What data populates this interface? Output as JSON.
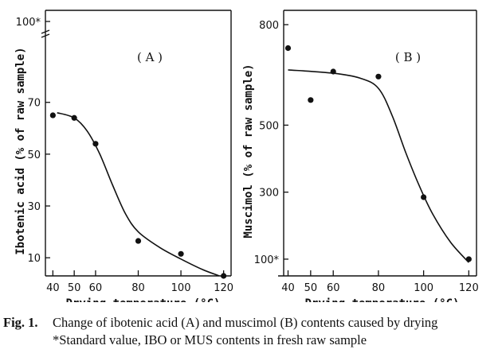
{
  "chart_data": [
    {
      "type": "scatter",
      "panel_label": "( A )",
      "ylabel": "Ibotenic acid (% of raw sample)",
      "xlabel": "",
      "x_ticks": [
        "40",
        "50",
        "60",
        "80",
        "100",
        "120"
      ],
      "y_ticks": [
        "10",
        "30",
        "50",
        "70",
        "100*"
      ],
      "xlim": [
        38,
        122
      ],
      "ylim": [
        3,
        100
      ],
      "points": [
        {
          "x": 40,
          "y": 65
        },
        {
          "x": 50,
          "y": 64
        },
        {
          "x": 60,
          "y": 54
        },
        {
          "x": 80,
          "y": 16.5
        },
        {
          "x": 100,
          "y": 11.5
        },
        {
          "x": 120,
          "y": 3
        }
      ],
      "fit_curve": [
        {
          "x": 42,
          "y": 66
        },
        {
          "x": 50,
          "y": 64
        },
        {
          "x": 56,
          "y": 59
        },
        {
          "x": 62,
          "y": 50
        },
        {
          "x": 68,
          "y": 38
        },
        {
          "x": 74,
          "y": 27
        },
        {
          "x": 80,
          "y": 20
        },
        {
          "x": 90,
          "y": 14
        },
        {
          "x": 100,
          "y": 9.5
        },
        {
          "x": 110,
          "y": 5.5
        },
        {
          "x": 118,
          "y": 3
        }
      ]
    },
    {
      "type": "scatter",
      "panel_label": "( B )",
      "ylabel": "Muscimol (% of raw sample)",
      "xlabel": "",
      "x_ticks": [
        "40",
        "50",
        "60",
        "80",
        "100",
        "120"
      ],
      "y_ticks": [
        "100*",
        "300",
        "500",
        "800"
      ],
      "xlim": [
        37,
        122
      ],
      "ylim": [
        50,
        800
      ],
      "points": [
        {
          "x": 40,
          "y": 730
        },
        {
          "x": 50,
          "y": 575
        },
        {
          "x": 60,
          "y": 660
        },
        {
          "x": 80,
          "y": 645
        },
        {
          "x": 100,
          "y": 285
        },
        {
          "x": 120,
          "y": 100
        }
      ],
      "fit_curve": [
        {
          "x": 40,
          "y": 665
        },
        {
          "x": 60,
          "y": 655
        },
        {
          "x": 72,
          "y": 640
        },
        {
          "x": 80,
          "y": 610
        },
        {
          "x": 86,
          "y": 530
        },
        {
          "x": 92,
          "y": 420
        },
        {
          "x": 98,
          "y": 320
        },
        {
          "x": 104,
          "y": 235
        },
        {
          "x": 112,
          "y": 150
        },
        {
          "x": 120,
          "y": 90
        }
      ]
    }
  ],
  "x_axis_title": "Drying temperature (°C)",
  "caption": {
    "fig_number": "Fig. 1.",
    "line1": "Change of ibotenic acid (A) and muscimol (B) contents caused by drying",
    "line2": "*Standard value, IBO or MUS contents in fresh raw sample"
  }
}
